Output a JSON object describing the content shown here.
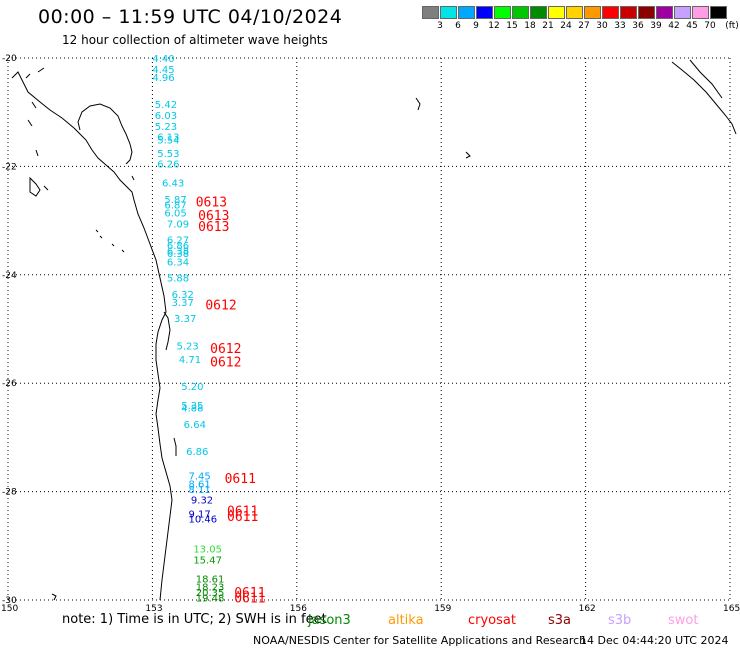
{
  "header": {
    "title": "00:00 – 11:59 UTC 04/10/2024",
    "subtitle": "12 hour collection of altimeter wave heights"
  },
  "colorbar": {
    "unit_label": "(ft)",
    "bins": [
      {
        "label": "3",
        "color": "#7f7f7f"
      },
      {
        "label": "6",
        "color": "#00e6e6"
      },
      {
        "label": "9",
        "color": "#00a8ff"
      },
      {
        "label": "12",
        "color": "#0000ff"
      },
      {
        "label": "15",
        "color": "#00ff00"
      },
      {
        "label": "18",
        "color": "#00c800"
      },
      {
        "label": "21",
        "color": "#008c00"
      },
      {
        "label": "24",
        "color": "#ffff00"
      },
      {
        "label": "27",
        "color": "#ffd200"
      },
      {
        "label": "30",
        "color": "#ff9900"
      },
      {
        "label": "33",
        "color": "#ff0000"
      },
      {
        "label": "36",
        "color": "#c80000"
      },
      {
        "label": "39",
        "color": "#8c0000"
      },
      {
        "label": "42",
        "color": "#a000a0"
      },
      {
        "label": "45",
        "color": "#c8a0ff"
      },
      {
        "label": "70",
        "color": "#ff9ee6"
      },
      {
        "label": "",
        "color": "#000000"
      }
    ]
  },
  "map": {
    "lon_range": [
      150,
      165
    ],
    "lat_range": [
      -30,
      -20
    ],
    "lat_ticks": [
      "-20",
      "-22",
      "-24",
      "-26",
      "-28",
      "-30"
    ],
    "lon_ticks": [
      "150",
      "153",
      "156",
      "159",
      "162",
      "165"
    ],
    "grid_color": "#000000",
    "coast_color": "#000000"
  },
  "observations": [
    {
      "lat": -20.0,
      "lon": 153.0,
      "value": "4.40",
      "color": "#00c8e6"
    },
    {
      "lat": -20.2,
      "lon": 153.0,
      "value": "4.45",
      "color": "#00c8e6"
    },
    {
      "lat": -20.35,
      "lon": 153.0,
      "value": "4.96",
      "color": "#00c8e6"
    },
    {
      "lat": -20.85,
      "lon": 153.05,
      "value": "5.42",
      "color": "#00c8e6"
    },
    {
      "lat": -21.05,
      "lon": 153.05,
      "value": "6.03",
      "color": "#00c8e6"
    },
    {
      "lat": -21.25,
      "lon": 153.05,
      "value": "5.23",
      "color": "#00c8e6"
    },
    {
      "lat": -21.45,
      "lon": 153.1,
      "value": "6.13",
      "color": "#00c8e6"
    },
    {
      "lat": -21.5,
      "lon": 153.1,
      "value": "5.54",
      "color": "#00c8e6"
    },
    {
      "lat": -21.75,
      "lon": 153.1,
      "value": "5.53",
      "color": "#00c8e6"
    },
    {
      "lat": -21.95,
      "lon": 153.1,
      "value": "6.26",
      "color": "#00c8e6"
    },
    {
      "lat": -22.3,
      "lon": 153.2,
      "value": "6.43",
      "color": "#00c8e6"
    },
    {
      "lat": -22.6,
      "lon": 153.25,
      "value": "5.87",
      "color": "#00c8e6"
    },
    {
      "lat": -22.7,
      "lon": 153.25,
      "value": "6.87",
      "color": "#00c8e6"
    },
    {
      "lat": -22.85,
      "lon": 153.25,
      "value": "6.05",
      "color": "#00c8e6"
    },
    {
      "lat": -23.05,
      "lon": 153.3,
      "value": "7.09",
      "color": "#00c8e6"
    },
    {
      "lat": -23.35,
      "lon": 153.3,
      "value": "6.27",
      "color": "#00c8e6"
    },
    {
      "lat": -23.45,
      "lon": 153.3,
      "value": "6.86",
      "color": "#00c8e6"
    },
    {
      "lat": -23.55,
      "lon": 153.3,
      "value": "6.38",
      "color": "#00c8e6"
    },
    {
      "lat": -23.6,
      "lon": 153.3,
      "value": "6.38",
      "color": "#00c8e6"
    },
    {
      "lat": -23.75,
      "lon": 153.3,
      "value": "6.34",
      "color": "#00c8e6"
    },
    {
      "lat": -24.05,
      "lon": 153.3,
      "value": "5.88",
      "color": "#00c8e6"
    },
    {
      "lat": -24.35,
      "lon": 153.4,
      "value": "6.32",
      "color": "#00c8e6"
    },
    {
      "lat": -24.5,
      "lon": 153.4,
      "value": "3.37",
      "color": "#00c8e6"
    },
    {
      "lat": -24.8,
      "lon": 153.45,
      "value": "3.37",
      "color": "#00c8e6"
    },
    {
      "lat": -25.3,
      "lon": 153.5,
      "value": "5.23",
      "color": "#00c8e6"
    },
    {
      "lat": -25.55,
      "lon": 153.55,
      "value": "4.71",
      "color": "#00c8e6"
    },
    {
      "lat": -26.05,
      "lon": 153.6,
      "value": "5.20",
      "color": "#00c8e6"
    },
    {
      "lat": -26.4,
      "lon": 153.6,
      "value": "5.35",
      "color": "#00c8e6"
    },
    {
      "lat": -26.45,
      "lon": 153.6,
      "value": "4.88",
      "color": "#00c8e6"
    },
    {
      "lat": -26.75,
      "lon": 153.65,
      "value": "6.64",
      "color": "#00c8e6"
    },
    {
      "lat": -27.25,
      "lon": 153.7,
      "value": "6.86",
      "color": "#00c8e6"
    },
    {
      "lat": -27.7,
      "lon": 153.75,
      "value": "7.45",
      "color": "#00a8ff"
    },
    {
      "lat": -27.85,
      "lon": 153.75,
      "value": "8.61",
      "color": "#00a8ff"
    },
    {
      "lat": -27.95,
      "lon": 153.75,
      "value": "8.11",
      "color": "#00a8ff"
    },
    {
      "lat": -28.15,
      "lon": 153.8,
      "value": "9.32",
      "color": "#0000cc"
    },
    {
      "lat": -28.4,
      "lon": 153.75,
      "value": "9.17",
      "color": "#0000cc"
    },
    {
      "lat": -28.5,
      "lon": 153.75,
      "value": "10.46",
      "color": "#0000cc"
    },
    {
      "lat": -29.05,
      "lon": 153.85,
      "value": "13.05",
      "color": "#33dd33"
    },
    {
      "lat": -29.25,
      "lon": 153.85,
      "value": "15.47",
      "color": "#00a000"
    },
    {
      "lat": -29.6,
      "lon": 153.9,
      "value": "18.61",
      "color": "#008c00"
    },
    {
      "lat": -29.75,
      "lon": 153.9,
      "value": "18.23",
      "color": "#008c00"
    },
    {
      "lat": -29.85,
      "lon": 153.9,
      "value": "20.35",
      "color": "#008c00"
    },
    {
      "lat": -29.95,
      "lon": 153.9,
      "value": "19.48",
      "color": "#008c00"
    }
  ],
  "time_labels": [
    {
      "lat": -22.65,
      "lon": 153.9,
      "value": "0613",
      "color": "#ff0000"
    },
    {
      "lat": -22.9,
      "lon": 153.95,
      "value": "0613",
      "color": "#ff0000"
    },
    {
      "lat": -23.1,
      "lon": 153.95,
      "value": "0613",
      "color": "#ff0000"
    },
    {
      "lat": -24.55,
      "lon": 154.1,
      "value": "0612",
      "color": "#ff0000"
    },
    {
      "lat": -25.35,
      "lon": 154.2,
      "value": "0612",
      "color": "#ff0000"
    },
    {
      "lat": -25.6,
      "lon": 154.2,
      "value": "0612",
      "color": "#ff0000"
    },
    {
      "lat": -27.75,
      "lon": 154.5,
      "value": "0611",
      "color": "#ff0000"
    },
    {
      "lat": -28.35,
      "lon": 154.55,
      "value": "0611",
      "color": "#ff0000"
    },
    {
      "lat": -28.45,
      "lon": 154.55,
      "value": "0611",
      "color": "#ff0000"
    },
    {
      "lat": -29.85,
      "lon": 154.7,
      "value": "0611",
      "color": "#ff0000"
    },
    {
      "lat": -29.95,
      "lon": 154.7,
      "value": "0611",
      "color": "#ff0000"
    }
  ],
  "footer": {
    "note": "note:  1) Time is in UTC; 2) SWH is in feet",
    "satellites": [
      {
        "name": "jason3",
        "color": "#008c00"
      },
      {
        "name": "altika",
        "color": "#ff9900"
      },
      {
        "name": "cryosat",
        "color": "#ff0000"
      },
      {
        "name": "s3a",
        "color": "#8c0000"
      },
      {
        "name": "s3b",
        "color": "#c8a0ff"
      },
      {
        "name": "swot",
        "color": "#ff9ee6"
      }
    ],
    "credit": "NOAA/NESDIS Center for Satellite Applications and Research",
    "created": "14 Dec 04:44:20 UTC 2024"
  }
}
